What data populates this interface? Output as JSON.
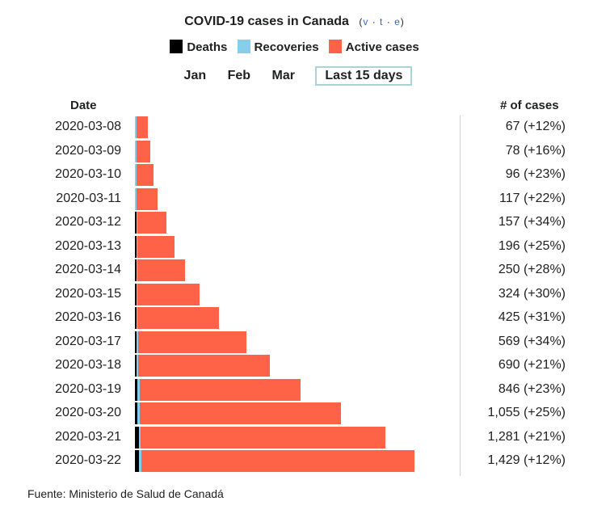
{
  "title": "COVID-19 cases in Canada",
  "vte": {
    "open": "(",
    "v": "v",
    "t": "t",
    "e": "e",
    "close": ")",
    "dot": "·"
  },
  "legend": [
    {
      "label": "Deaths",
      "color": "#000000"
    },
    {
      "label": "Recoveries",
      "color": "#87ceeb"
    },
    {
      "label": "Active cases",
      "color": "#ff6347"
    }
  ],
  "tabs": [
    "Jan",
    "Feb",
    "Mar",
    "Last 15 days"
  ],
  "active_tab": "Last 15 days",
  "col_date": "Date",
  "col_cases": "# of cases",
  "source": "Fuente: Ministerio de Salud de Canadá",
  "chart_data": {
    "type": "bar",
    "orientation": "horizontal",
    "stacked": true,
    "categories": [
      "2020-03-08",
      "2020-03-09",
      "2020-03-10",
      "2020-03-11",
      "2020-03-12",
      "2020-03-13",
      "2020-03-14",
      "2020-03-15",
      "2020-03-16",
      "2020-03-17",
      "2020-03-18",
      "2020-03-19",
      "2020-03-20",
      "2020-03-21",
      "2020-03-22"
    ],
    "series": [
      {
        "name": "Deaths",
        "color": "#000000",
        "values": [
          0,
          0,
          0,
          0,
          1,
          1,
          1,
          1,
          1,
          8,
          9,
          12,
          13,
          19,
          21
        ]
      },
      {
        "name": "Recoveries",
        "color": "#87ceeb",
        "values": [
          8,
          8,
          8,
          8,
          8,
          8,
          8,
          8,
          8,
          8,
          9,
          11,
          11,
          11,
          12
        ]
      },
      {
        "name": "Active cases",
        "color": "#ff6347",
        "values": [
          59,
          70,
          88,
          109,
          148,
          187,
          241,
          315,
          416,
          553,
          672,
          823,
          1031,
          1251,
          1396
        ]
      }
    ],
    "totals": [
      67,
      78,
      96,
      117,
      157,
      196,
      250,
      324,
      425,
      569,
      690,
      846,
      1055,
      1281,
      1429
    ],
    "labels": [
      "67 (+12%)",
      "78 (+16%)",
      "96 (+23%)",
      "117 (+22%)",
      "157 (+34%)",
      "196 (+25%)",
      "250 (+28%)",
      "324 (+30%)",
      "425 (+31%)",
      "569 (+34%)",
      "690 (+21%)",
      "846 (+23%)",
      "1,055 (+25%)",
      "1,281 (+21%)",
      "1,429 (+12%)"
    ]
  }
}
